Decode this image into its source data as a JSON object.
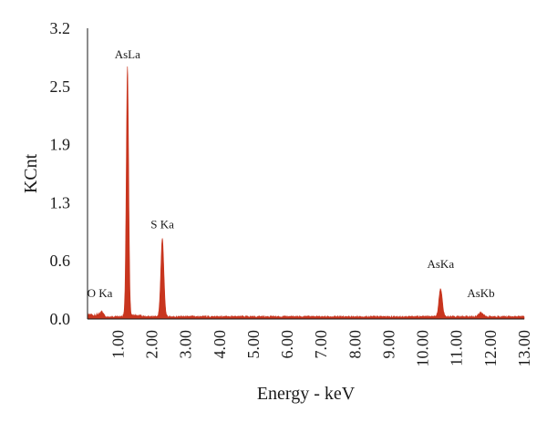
{
  "chart_data": {
    "type": "area",
    "title": "",
    "xlabel": "Energy - keV",
    "ylabel": "KCnt",
    "xlim": [
      0.1,
      13.0
    ],
    "ylim": [
      0.0,
      3.2
    ],
    "y_ticks": [
      "0.0",
      "0.6",
      "1.3",
      "1.9",
      "2.5",
      "3.2"
    ],
    "y_tick_values": [
      0.0,
      0.64,
      1.28,
      1.92,
      2.56,
      3.2
    ],
    "x_ticks": [
      "1.00",
      "2.00",
      "3.00",
      "4.00",
      "5.00",
      "6.00",
      "7.00",
      "8.00",
      "9.00",
      "10.00",
      "11.00",
      "12.00",
      "13.00"
    ],
    "x_tick_values": [
      1,
      2,
      3,
      4,
      5,
      6,
      7,
      8,
      9,
      10,
      11,
      12,
      13
    ],
    "grid": false,
    "fill_color": "#c8351e",
    "peaks": [
      {
        "label": "O Ka",
        "x": 0.52,
        "y": 0.06
      },
      {
        "label": "AsLa",
        "x": 1.28,
        "y": 2.73
      },
      {
        "label": "S Ka",
        "x": 2.31,
        "y": 0.86
      },
      {
        "label": "AsKa",
        "x": 10.53,
        "y": 0.31
      },
      {
        "label": "AsKb",
        "x": 11.72,
        "y": 0.05
      }
    ],
    "background_level": 0.025
  }
}
